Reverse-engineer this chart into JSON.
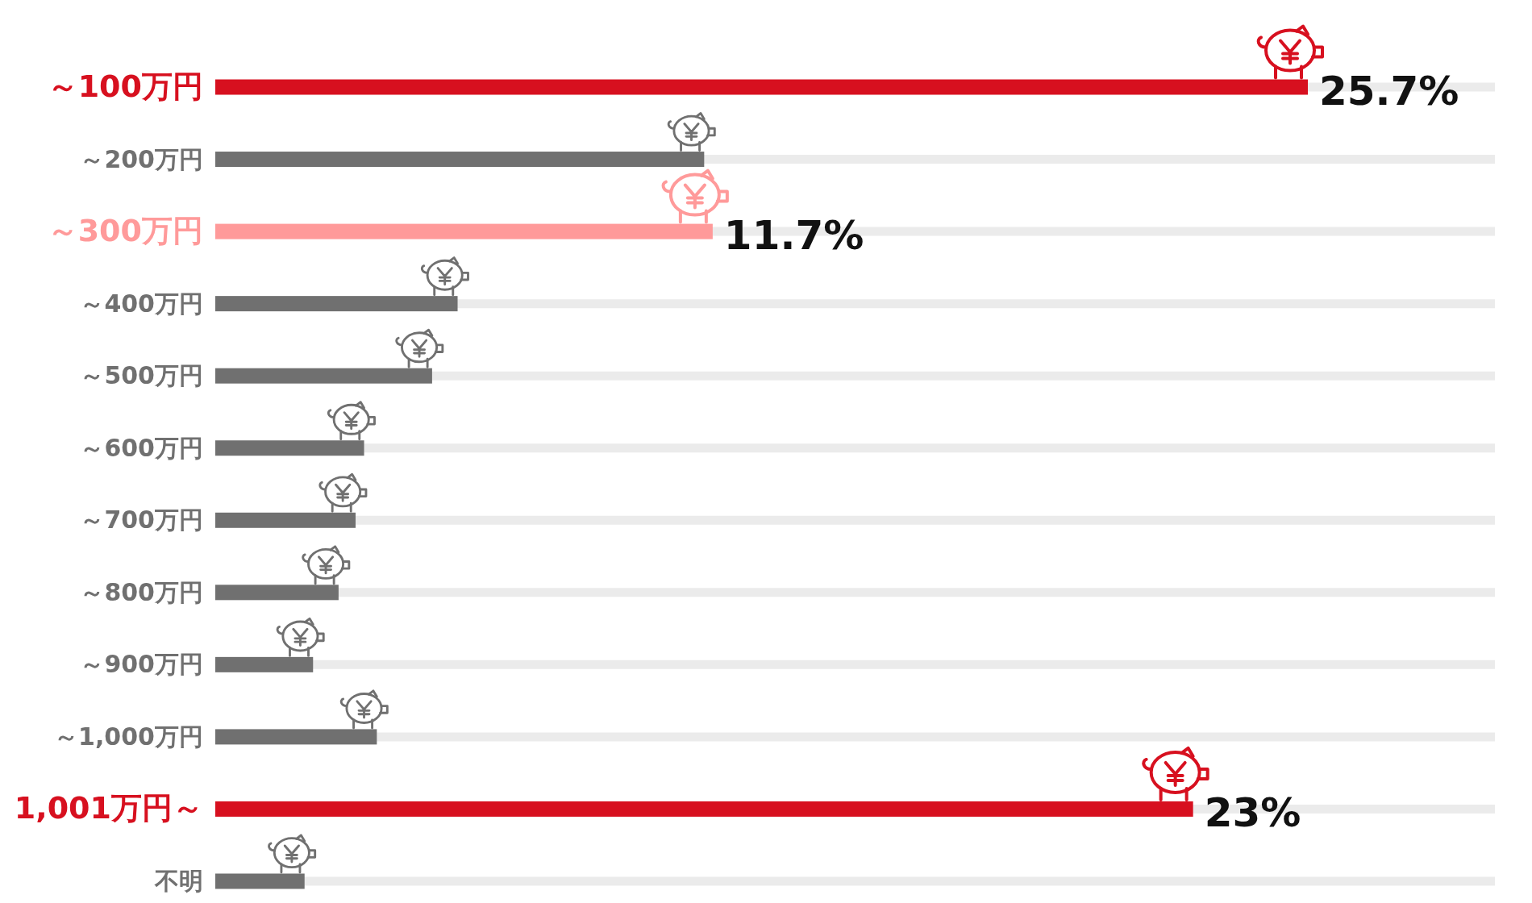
{
  "chart_data": {
    "type": "bar",
    "orientation": "horizontal",
    "categories": [
      "～100万円",
      "～200万円",
      "～300万円",
      "～400万円",
      "～500万円",
      "～600万円",
      "～700万円",
      "～800万円",
      "～900万円",
      "～1,000万円",
      "1,001万円～",
      "不明"
    ],
    "values": [
      25.7,
      11.5,
      11.7,
      5.7,
      5.1,
      3.5,
      3.3,
      2.9,
      2.3,
      3.8,
      23,
      2.1
    ],
    "colors": [
      "#d7101f",
      "#707070",
      "#ff9a9a",
      "#707070",
      "#707070",
      "#707070",
      "#707070",
      "#707070",
      "#707070",
      "#707070",
      "#d7101f",
      "#707070"
    ],
    "value_labels": [
      "25.7%",
      null,
      "11.7%",
      null,
      null,
      null,
      null,
      null,
      null,
      null,
      "23%",
      null
    ],
    "xlim": [
      0,
      30.1
    ],
    "grid": "y"
  }
}
